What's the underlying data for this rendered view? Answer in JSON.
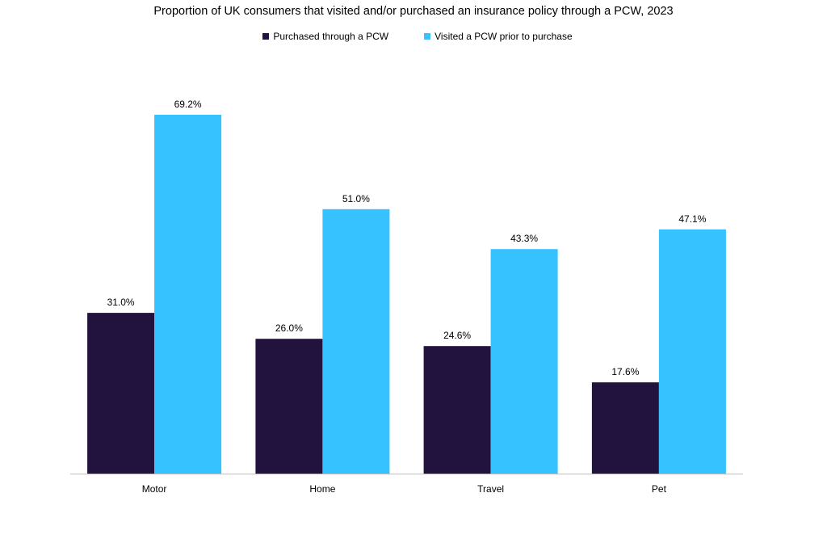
{
  "chart_data": {
    "type": "bar",
    "title": "Proportion of UK consumers that visited and/or purchased an insurance policy through a PCW, 2023",
    "categories": [
      "Motor",
      "Home",
      "Travel",
      "Pet"
    ],
    "series": [
      {
        "name": "Purchased through a PCW",
        "color": "#22123e",
        "values": [
          31.0,
          26.0,
          24.6,
          17.6
        ],
        "labels": [
          "31.0%",
          "26.0%",
          "24.6%",
          "17.6%"
        ]
      },
      {
        "name": "Visited a PCW prior to purchase",
        "color": "#35c2ff",
        "values": [
          69.2,
          51.0,
          43.3,
          47.1
        ],
        "labels": [
          "69.2%",
          "51.0%",
          "43.3%",
          "47.1%"
        ]
      }
    ],
    "xlabel": "",
    "ylabel": "",
    "ylim": [
      0,
      69.2
    ],
    "grid": false,
    "legend_position": "top-center",
    "axis_color": "#bfbfbf"
  }
}
